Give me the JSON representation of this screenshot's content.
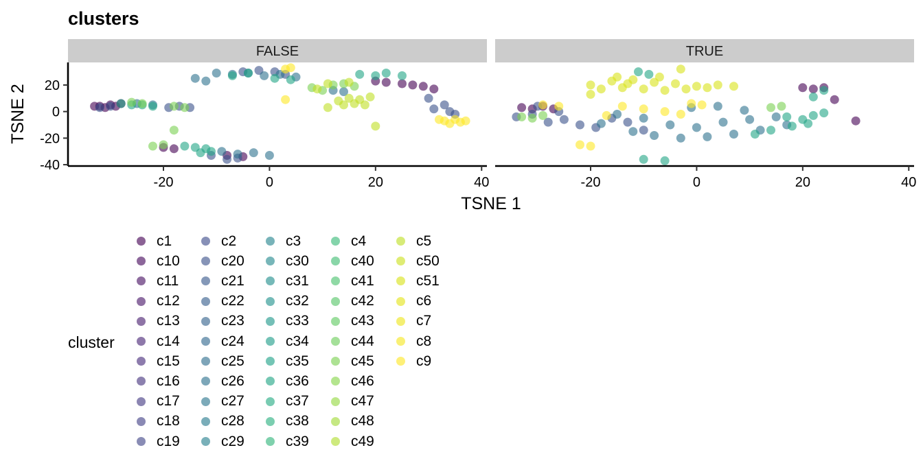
{
  "chart_data": {
    "type": "scatter",
    "title": "clusters",
    "xlabel": "TSNE 1",
    "ylabel": "TSNE 2",
    "facets": [
      "FALSE",
      "TRUE"
    ],
    "xlim": [
      -38,
      41
    ],
    "ylim": [
      -41,
      37
    ],
    "xticks": [
      -20,
      0,
      20,
      40
    ],
    "yticks": [
      20,
      0,
      -20,
      -40
    ],
    "grid": false,
    "legend_position": "left-bottom",
    "legend_title": "cluster",
    "legend_columns": [
      [
        "c1",
        "c10",
        "c11",
        "c12",
        "c13",
        "c14",
        "c15",
        "c16",
        "c17",
        "c18",
        "c19"
      ],
      [
        "c2",
        "c20",
        "c21",
        "c22",
        "c23",
        "c24",
        "c25",
        "c26",
        "c27",
        "c28",
        "c29"
      ],
      [
        "c3",
        "c30",
        "c31",
        "c32",
        "c33",
        "c34",
        "c35",
        "c36",
        "c37",
        "c38",
        "c39"
      ],
      [
        "c4",
        "c40",
        "c41",
        "c42",
        "c43",
        "c44",
        "c45",
        "c46",
        "c47",
        "c48",
        "c49"
      ],
      [
        "c5",
        "c50",
        "c51",
        "c6",
        "c7",
        "c8",
        "c9"
      ]
    ],
    "legend_colors": [
      [
        "#440154",
        "#46085c",
        "#471063",
        "#481769",
        "#481e70",
        "#482576",
        "#472c7a",
        "#46337e",
        "#443a83",
        "#424086",
        "#404688"
      ],
      [
        "#3e4c8a",
        "#3b528b",
        "#38598c",
        "#365e8d",
        "#33638d",
        "#31688e",
        "#2f6d8e",
        "#2d718e",
        "#2b768e",
        "#297b8e",
        "#27808e"
      ],
      [
        "#25848e",
        "#23898e",
        "#218e8d",
        "#20928c",
        "#1f978b",
        "#1e9c89",
        "#1fa188",
        "#21a585",
        "#25ab82",
        "#2ab07f",
        "#31b57b"
      ],
      [
        "#38b977",
        "#40bd72",
        "#4ac16d",
        "#55c568",
        "#5fca61",
        "#6ccd5a",
        "#7ad151",
        "#86d549",
        "#95d840",
        "#a2da37",
        "#b0dd2f"
      ],
      [
        "#bfdf25",
        "#ccE11e",
        "#d8e219",
        "#e4e419",
        "#eee51c",
        "#f6e620",
        "#fde725"
      ]
    ],
    "series": [
      {
        "facet": "FALSE",
        "color": "#440154",
        "points": [
          [
            -33,
            4
          ],
          [
            -31,
            3
          ],
          [
            -30,
            5
          ],
          [
            -32,
            4
          ],
          [
            -29,
            4
          ],
          [
            -28,
            6
          ],
          [
            20,
            23
          ],
          [
            22,
            22
          ],
          [
            25,
            21
          ],
          [
            27,
            20
          ],
          [
            29,
            19
          ],
          [
            31,
            17
          ],
          [
            -18,
            -28
          ],
          [
            -20,
            -27
          ],
          [
            -8,
            -33
          ],
          [
            -5,
            -34
          ]
        ]
      },
      {
        "facet": "FALSE",
        "color": "#3b528b",
        "points": [
          [
            -32,
            3
          ],
          [
            -30,
            4
          ],
          [
            -19,
            3
          ],
          [
            -17,
            4
          ],
          [
            -15,
            3
          ],
          [
            -5,
            30
          ],
          [
            -2,
            31
          ],
          [
            1,
            30
          ],
          [
            3,
            28
          ],
          [
            30,
            10
          ],
          [
            33,
            5
          ],
          [
            34,
            0
          ],
          [
            35,
            -2
          ],
          [
            31,
            2
          ],
          [
            -11,
            -33
          ],
          [
            -8,
            -36
          ],
          [
            -6,
            -35
          ]
        ]
      },
      {
        "facet": "FALSE",
        "color": "#2d718e",
        "points": [
          [
            -10,
            29
          ],
          [
            -7,
            28
          ],
          [
            -4,
            29
          ],
          [
            -1,
            27
          ],
          [
            2,
            28
          ],
          [
            5,
            26
          ],
          [
            -9,
            -30
          ],
          [
            -6,
            -32
          ],
          [
            -3,
            -31
          ],
          [
            0,
            -33
          ],
          [
            -25,
            6
          ],
          [
            -22,
            5
          ],
          [
            12,
            16
          ],
          [
            14,
            15
          ],
          [
            -14,
            25
          ],
          [
            -12,
            23
          ]
        ]
      },
      {
        "facet": "FALSE",
        "color": "#21a585",
        "points": [
          [
            -28,
            6
          ],
          [
            -26,
            5
          ],
          [
            -24,
            5
          ],
          [
            -22,
            4
          ],
          [
            -14,
            -27
          ],
          [
            -12,
            -28
          ],
          [
            -11,
            -30
          ],
          [
            -7,
            27
          ],
          [
            -4,
            29
          ],
          [
            1,
            25
          ],
          [
            4,
            24
          ],
          [
            17,
            28
          ],
          [
            20,
            27
          ],
          [
            22,
            29
          ],
          [
            25,
            27
          ],
          [
            -16,
            -26
          ],
          [
            -13,
            -31
          ]
        ]
      },
      {
        "facet": "FALSE",
        "color": "#7ad151",
        "points": [
          [
            -26,
            7
          ],
          [
            -24,
            6
          ],
          [
            -18,
            4
          ],
          [
            -16,
            3
          ],
          [
            8,
            18
          ],
          [
            10,
            16
          ],
          [
            12,
            20
          ],
          [
            14,
            21
          ],
          [
            16,
            19
          ],
          [
            -22,
            -26
          ],
          [
            -20,
            -25
          ],
          [
            -18,
            -14
          ]
        ]
      },
      {
        "facet": "FALSE",
        "color": "#bfdf25",
        "points": [
          [
            13,
            8
          ],
          [
            15,
            10
          ],
          [
            17,
            9
          ],
          [
            19,
            11
          ],
          [
            14,
            5
          ],
          [
            16,
            6
          ],
          [
            18,
            5
          ],
          [
            11,
            3
          ],
          [
            20,
            -11
          ],
          [
            9,
            17
          ],
          [
            11,
            21
          ],
          [
            15,
            22
          ]
        ]
      },
      {
        "facet": "FALSE",
        "color": "#fde725",
        "points": [
          [
            33,
            -7
          ],
          [
            35,
            -6
          ],
          [
            36,
            -8
          ],
          [
            34,
            -9
          ],
          [
            32,
            -6
          ],
          [
            37,
            -7
          ],
          [
            3,
            32
          ],
          [
            4,
            33
          ],
          [
            3,
            9
          ]
        ]
      },
      {
        "facet": "TRUE",
        "color": "#440154",
        "points": [
          [
            -33,
            3
          ],
          [
            -31,
            2
          ],
          [
            -29,
            4
          ],
          [
            -27,
            2
          ],
          [
            20,
            18
          ],
          [
            22,
            17
          ],
          [
            24,
            18
          ],
          [
            30,
            -7
          ],
          [
            26,
            9
          ]
        ]
      },
      {
        "facet": "TRUE",
        "color": "#3b528b",
        "points": [
          [
            -34,
            -4
          ],
          [
            -31,
            -2
          ],
          [
            -28,
            -8
          ],
          [
            -25,
            -6
          ],
          [
            -22,
            -10
          ],
          [
            -19,
            -12
          ],
          [
            -16,
            -5
          ],
          [
            -13,
            -8
          ],
          [
            -10,
            -14
          ],
          [
            -30,
            4
          ],
          [
            -26,
            0
          ]
        ]
      },
      {
        "facet": "TRUE",
        "color": "#2d718e",
        "points": [
          [
            -15,
            -2
          ],
          [
            -10,
            -5
          ],
          [
            -5,
            -10
          ],
          [
            0,
            -12
          ],
          [
            5,
            -8
          ],
          [
            10,
            -6
          ],
          [
            15,
            -4
          ],
          [
            -8,
            -18
          ],
          [
            -3,
            -20
          ],
          [
            2,
            -19
          ],
          [
            7,
            -17
          ],
          [
            12,
            -14
          ],
          [
            17,
            -10
          ],
          [
            -18,
            -9
          ],
          [
            -12,
            -15
          ],
          [
            4,
            4
          ],
          [
            9,
            1
          ],
          [
            -1,
            3
          ]
        ]
      },
      {
        "facet": "TRUE",
        "color": "#21a585",
        "points": [
          [
            17,
            -4
          ],
          [
            20,
            -6
          ],
          [
            22,
            -3
          ],
          [
            24,
            -1
          ],
          [
            18,
            -11
          ],
          [
            21,
            -9
          ],
          [
            -10,
            -36
          ],
          [
            -6,
            -37
          ],
          [
            -11,
            30
          ],
          [
            -9,
            28
          ],
          [
            22,
            11
          ],
          [
            24,
            16
          ],
          [
            14,
            -14
          ],
          [
            11,
            -17
          ]
        ]
      },
      {
        "facet": "TRUE",
        "color": "#7ad151",
        "points": [
          [
            -33,
            -4
          ],
          [
            -31,
            -5
          ],
          [
            -29,
            -3
          ],
          [
            14,
            3
          ],
          [
            16,
            4
          ]
        ]
      },
      {
        "facet": "TRUE",
        "color": "#d8e219",
        "points": [
          [
            -20,
            20
          ],
          [
            -16,
            23
          ],
          [
            -12,
            24
          ],
          [
            -8,
            22
          ],
          [
            -4,
            21
          ],
          [
            0,
            19
          ],
          [
            -18,
            17
          ],
          [
            -14,
            18
          ],
          [
            -10,
            17
          ],
          [
            -6,
            16
          ],
          [
            -2,
            17
          ],
          [
            2,
            18
          ],
          [
            -13,
            21
          ],
          [
            -7,
            26
          ],
          [
            -15,
            26
          ],
          [
            4,
            20
          ],
          [
            -20,
            13
          ],
          [
            7,
            19
          ],
          [
            -3,
            32
          ]
        ]
      },
      {
        "facet": "TRUE",
        "color": "#fde725",
        "points": [
          [
            -29,
            5
          ],
          [
            -26,
            4
          ],
          [
            -22,
            -25
          ],
          [
            -20,
            -26
          ],
          [
            -14,
            4
          ],
          [
            -10,
            2
          ],
          [
            -6,
            0
          ],
          [
            -3,
            -2
          ],
          [
            -1,
            6
          ],
          [
            1,
            5
          ],
          [
            -17,
            -3
          ]
        ]
      }
    ]
  }
}
